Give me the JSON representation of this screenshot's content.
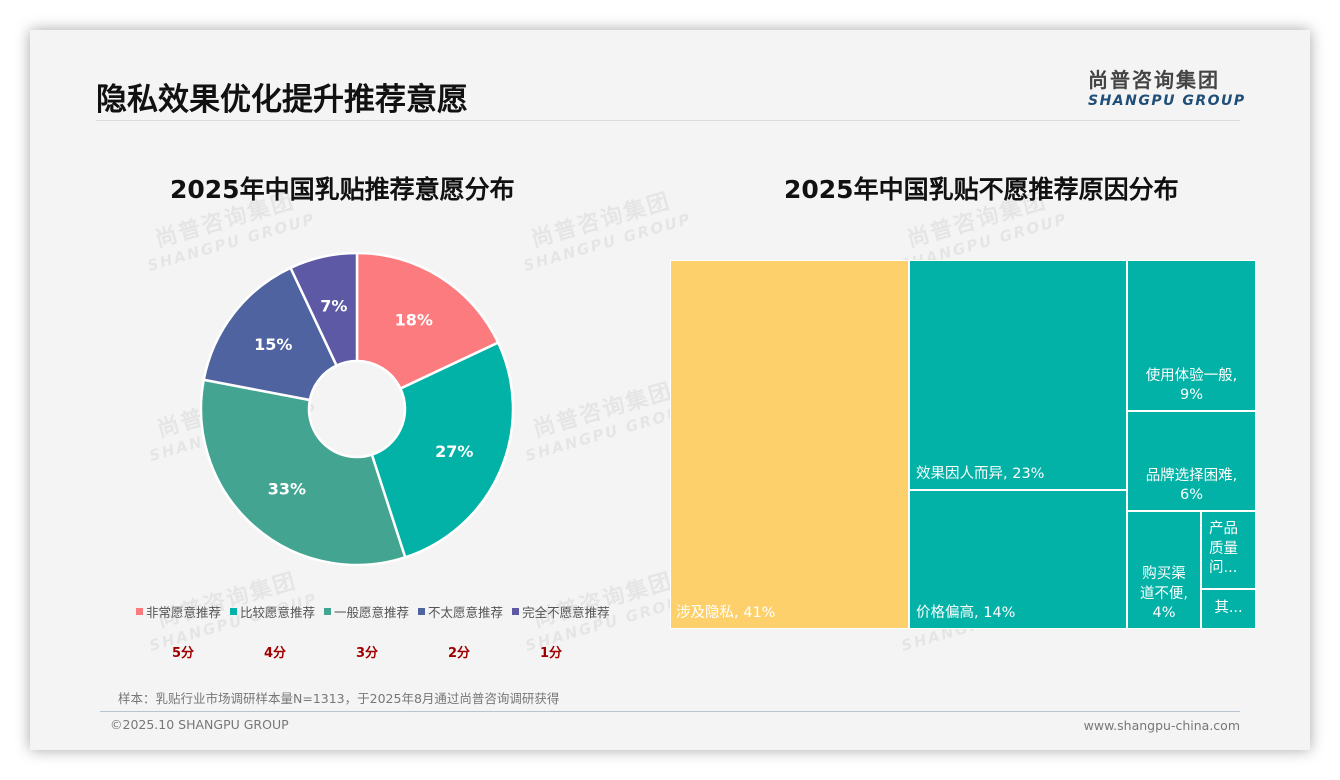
{
  "header": {
    "title": "隐私效果优化提升推荐意愿",
    "logo_cn": "尚普咨询集团",
    "logo_en": "SHANGPU GROUP"
  },
  "watermark": {
    "cn": "尚普咨询集团",
    "en": "SHANGPU GROUP"
  },
  "left_chart": {
    "title": "2025年中国乳贴推荐意愿分布",
    "segments": [
      {
        "label": "非常愿意推荐",
        "value": 18,
        "text": "18%",
        "color": "#fb7b7f",
        "score": "5分"
      },
      {
        "label": "比较愿意推荐",
        "value": 27,
        "text": "27%",
        "color": "#03b2a7",
        "score": "4分"
      },
      {
        "label": "一般愿意推荐",
        "value": 33,
        "text": "33%",
        "color": "#43a591",
        "score": "3分"
      },
      {
        "label": "不太愿意推荐",
        "value": 15,
        "text": "15%",
        "color": "#4f63a0",
        "score": "2分"
      },
      {
        "label": "完全不愿意推荐",
        "value": 7,
        "text": "7%",
        "color": "#5d59a4",
        "score": "1分"
      }
    ]
  },
  "right_chart": {
    "title": "2025年中国乳贴不愿推荐原因分布",
    "tiles": [
      {
        "label": "涉及隐私, 41%",
        "name": "涉及隐私",
        "value": 41,
        "color": "#fdd06b"
      },
      {
        "label": "效果因人而异, 23%",
        "name": "效果因人而异",
        "value": 23,
        "color": "#03b2a7"
      },
      {
        "label": "价格偏高, 14%",
        "name": "价格偏高",
        "value": 14,
        "color": "#03b2a7"
      },
      {
        "label": "使用体验一般,",
        "label2": "9%",
        "name": "使用体验一般",
        "value": 9,
        "color": "#03b2a7"
      },
      {
        "label": "品牌选择困难,",
        "label2": "6%",
        "name": "品牌选择困难",
        "value": 6,
        "color": "#03b2a7"
      },
      {
        "label": "购买渠",
        "label2": "道不便,",
        "label3": "4%",
        "name": "购买渠道不便",
        "value": 4,
        "color": "#03b2a7"
      },
      {
        "label": "产品",
        "label2": "质量",
        "label3": "问...",
        "name": "产品质量问题",
        "value": 2,
        "color": "#03b2a7"
      },
      {
        "label": "其...",
        "name": "其他",
        "value": 1,
        "color": "#03b2a7"
      }
    ]
  },
  "chart_data": [
    {
      "type": "pie",
      "title": "2025年中国乳贴推荐意愿分布",
      "categories": [
        "非常愿意推荐",
        "比较愿意推荐",
        "一般愿意推荐",
        "不太愿意推荐",
        "完全不愿意推荐"
      ],
      "values": [
        18,
        27,
        33,
        15,
        7
      ],
      "unit": "%",
      "scores": [
        "5分",
        "4分",
        "3分",
        "2分",
        "1分"
      ],
      "donut": true,
      "legend_position": "bottom"
    },
    {
      "type": "treemap",
      "title": "2025年中国乳贴不愿推荐原因分布",
      "categories": [
        "涉及隐私",
        "效果因人而异",
        "价格偏高",
        "使用体验一般",
        "品牌选择困难",
        "购买渠道不便",
        "产品质量问题",
        "其他"
      ],
      "values": [
        41,
        23,
        14,
        9,
        6,
        4,
        2,
        1
      ],
      "unit": "%"
    }
  ],
  "footer": {
    "note": "样本：乳贴行业市场调研样本量N=1313，于2025年8月通过尚普咨询调研获得",
    "copyright": "©2025.10 SHANGPU GROUP",
    "website": "www.shangpu-china.com"
  }
}
